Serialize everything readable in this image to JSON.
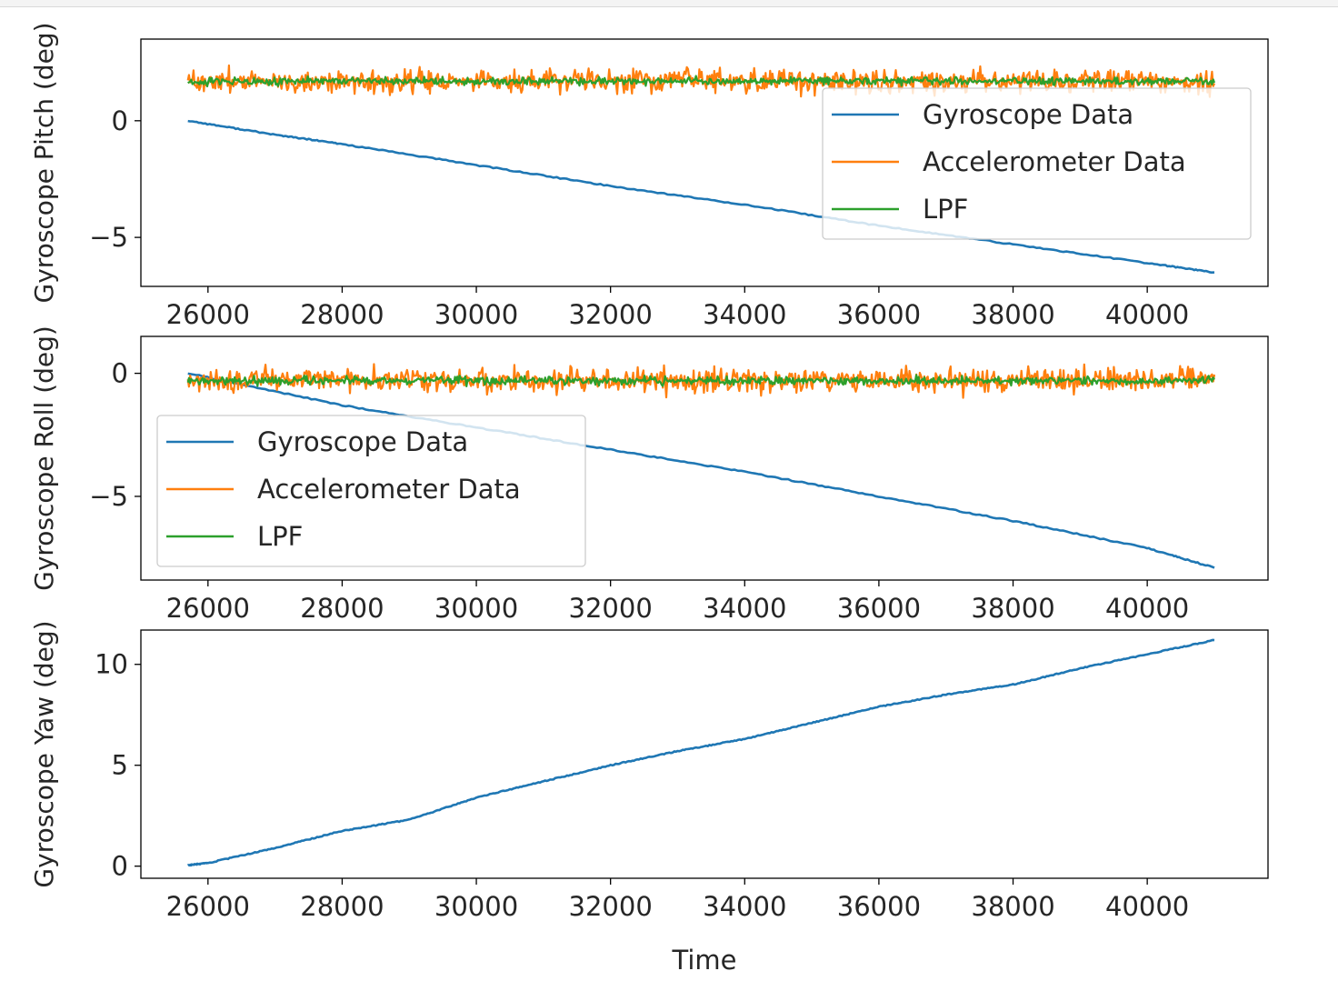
{
  "chart_data": [
    {
      "type": "line",
      "xlabel": "",
      "ylabel": "Gyroscope Pitch (deg)",
      "xlim": [
        25000,
        41800
      ],
      "ylim": [
        -7.1,
        3.5
      ],
      "xticks": [
        26000,
        28000,
        30000,
        32000,
        34000,
        36000,
        38000,
        40000
      ],
      "xtick_labels": [
        "26000",
        "28000",
        "30000",
        "32000",
        "34000",
        "36000",
        "38000",
        "40000"
      ],
      "yticks": [
        0,
        -5
      ],
      "ytick_labels": [
        "0",
        "−5"
      ],
      "legend_position": "right",
      "series": [
        {
          "name": "Gyroscope Data",
          "color": "#1f77b4",
          "x": [
            25700,
            27000,
            28000,
            30000,
            32000,
            34000,
            36000,
            38000,
            40000,
            41000
          ],
          "y": [
            0.0,
            -0.6,
            -1.0,
            -1.9,
            -2.8,
            -3.6,
            -4.5,
            -5.3,
            -6.1,
            -6.5
          ]
        },
        {
          "name": "Accelerometer Data",
          "color": "#ff7f0e",
          "x_range": [
            25700,
            41000
          ],
          "mean": 1.7,
          "noise_amplitude": 0.55,
          "sample_count": 900,
          "min": 0.4,
          "max": 3.0
        },
        {
          "name": "LPF",
          "color": "#2ca02c",
          "x_range": [
            25700,
            41000
          ],
          "mean": 1.7,
          "noise_amplitude": 0.18,
          "sample_count": 900
        }
      ]
    },
    {
      "type": "line",
      "xlabel": "",
      "ylabel": "Gyroscope Roll (deg)",
      "xlim": [
        25000,
        41800
      ],
      "ylim": [
        -8.4,
        1.5
      ],
      "xticks": [
        26000,
        28000,
        30000,
        32000,
        34000,
        36000,
        38000,
        40000
      ],
      "xtick_labels": [
        "26000",
        "28000",
        "30000",
        "32000",
        "34000",
        "36000",
        "38000",
        "40000"
      ],
      "yticks": [
        0,
        -5
      ],
      "ytick_labels": [
        "0",
        "−5"
      ],
      "legend_position": "left",
      "series": [
        {
          "name": "Gyroscope Data",
          "color": "#1f77b4",
          "x": [
            25700,
            28000,
            30000,
            32000,
            34000,
            36000,
            38000,
            40000,
            41000
          ],
          "y": [
            0.0,
            -1.3,
            -2.2,
            -3.1,
            -4.0,
            -5.0,
            -6.0,
            -7.1,
            -7.9
          ]
        },
        {
          "name": "Accelerometer Data",
          "color": "#ff7f0e",
          "x_range": [
            25700,
            41000
          ],
          "mean": -0.3,
          "noise_amplitude": 0.55,
          "sample_count": 900,
          "min": -1.6,
          "max": 1.2
        },
        {
          "name": "LPF",
          "color": "#2ca02c",
          "x_range": [
            25700,
            41000
          ],
          "mean": -0.3,
          "noise_amplitude": 0.18,
          "sample_count": 900
        }
      ]
    },
    {
      "type": "line",
      "xlabel": "Time",
      "ylabel": "Gyroscope Yaw (deg)",
      "xlim": [
        25000,
        41800
      ],
      "ylim": [
        -0.6,
        11.7
      ],
      "xticks": [
        26000,
        28000,
        30000,
        32000,
        34000,
        36000,
        38000,
        40000
      ],
      "xtick_labels": [
        "26000",
        "28000",
        "30000",
        "32000",
        "34000",
        "36000",
        "38000",
        "40000"
      ],
      "yticks": [
        0,
        5,
        10
      ],
      "ytick_labels": [
        "0",
        "5",
        "10"
      ],
      "legend_position": "none",
      "series": [
        {
          "name": "Gyroscope Data",
          "color": "#1f77b4",
          "x": [
            25700,
            26000,
            27000,
            28000,
            29000,
            30000,
            31000,
            32000,
            33000,
            34000,
            35000,
            36000,
            37000,
            38000,
            39000,
            40000,
            41000
          ],
          "y": [
            0.05,
            0.15,
            0.9,
            1.75,
            2.3,
            3.4,
            4.2,
            5.0,
            5.7,
            6.3,
            7.1,
            7.9,
            8.5,
            9.0,
            9.8,
            10.5,
            11.2
          ]
        }
      ]
    }
  ]
}
